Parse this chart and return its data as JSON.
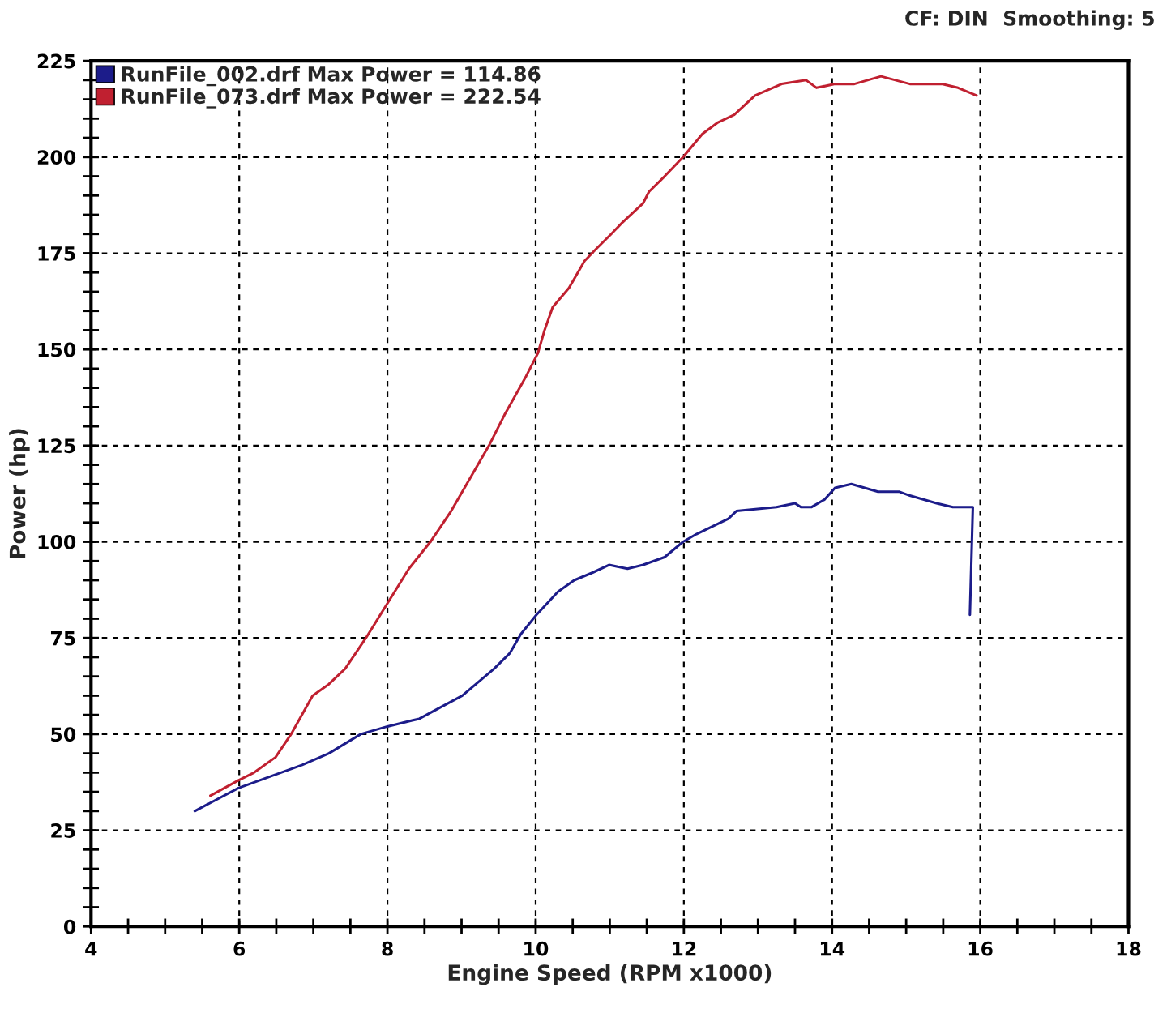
{
  "chart_data": {
    "type": "line",
    "xlabel": "Engine Speed (RPM x1000)",
    "ylabel": "Power (hp)",
    "annotations": [
      "CF: DIN  Smoothing: 5"
    ],
    "xlim": [
      4,
      18
    ],
    "ylim": [
      0,
      225
    ],
    "xticks": [
      4,
      {
        "value": 4.5,
        "label": null
      },
      {
        "value": 5,
        "label": null
      },
      {
        "value": 5.5,
        "label": null
      },
      6,
      {
        "value": 6.5,
        "label": null
      },
      {
        "value": 7,
        "label": null
      },
      {
        "value": 7.5,
        "label": null
      },
      8,
      {
        "value": 8.5,
        "label": null
      },
      {
        "value": 9,
        "label": null
      },
      {
        "value": 9.5,
        "label": null
      },
      10,
      {
        "value": 10.5,
        "label": null
      },
      {
        "value": 11,
        "label": null
      },
      {
        "value": 11.5,
        "label": null
      },
      12,
      {
        "value": 12.5,
        "label": null
      },
      {
        "value": 13,
        "label": null
      },
      {
        "value": 13.5,
        "label": null
      },
      14,
      {
        "value": 14.5,
        "label": null
      },
      {
        "value": 15,
        "label": null
      },
      {
        "value": 15.5,
        "label": null
      },
      16,
      {
        "value": 16.5,
        "label": null
      },
      {
        "value": 17,
        "label": null
      },
      {
        "value": 17.5,
        "label": null
      },
      18
    ],
    "yticks": [
      0,
      {
        "value": 5,
        "label": null
      },
      {
        "value": 10,
        "label": null
      },
      {
        "value": 15,
        "label": null
      },
      {
        "value": 20,
        "label": null
      },
      25,
      {
        "value": 30,
        "label": null
      },
      {
        "value": 35,
        "label": null
      },
      {
        "value": 40,
        "label": null
      },
      {
        "value": 45,
        "label": null
      },
      50,
      {
        "value": 55,
        "label": null
      },
      {
        "value": 60,
        "label": null
      },
      {
        "value": 65,
        "label": null
      },
      {
        "value": 70,
        "label": null
      },
      75,
      {
        "value": 80,
        "label": null
      },
      {
        "value": 85,
        "label": null
      },
      {
        "value": 90,
        "label": null
      },
      {
        "value": 95,
        "label": null
      },
      100,
      {
        "value": 105,
        "label": null
      },
      {
        "value": 110,
        "label": null
      },
      {
        "value": 115,
        "label": null
      },
      {
        "value": 120,
        "label": null
      },
      125,
      {
        "value": 130,
        "label": null
      },
      {
        "value": 135,
        "label": null
      },
      {
        "value": 140,
        "label": null
      },
      {
        "value": 145,
        "label": null
      },
      150,
      {
        "value": 155,
        "label": null
      },
      {
        "value": 160,
        "label": null
      },
      {
        "value": 165,
        "label": null
      },
      {
        "value": 170,
        "label": null
      },
      175,
      {
        "value": 180,
        "label": null
      },
      {
        "value": 185,
        "label": null
      },
      {
        "value": 190,
        "label": null
      },
      {
        "value": 195,
        "label": null
      },
      200,
      {
        "value": 205,
        "label": null
      },
      {
        "value": 210,
        "label": null
      },
      {
        "value": 215,
        "label": null
      },
      {
        "value": 220,
        "label": null
      },
      225
    ],
    "grid": true,
    "legend": "top left",
    "marker": "none",
    "line_style": "solid",
    "series": [
      {
        "name": "RunFile_002.drf Max Power = 114.86",
        "color": "#1c1c8a",
        "x": [
          5.4,
          5.99,
          6.42,
          6.85,
          7.21,
          7.64,
          8.0,
          8.43,
          8.72,
          9.01,
          9.44,
          9.65,
          9.8,
          10.01,
          10.3,
          10.52,
          10.77,
          10.99,
          11.24,
          11.45,
          11.74,
          11.99,
          12.17,
          12.6,
          12.71,
          13.25,
          13.5,
          13.58,
          13.72,
          13.9,
          14.04,
          14.26,
          14.62,
          14.91,
          15.05,
          15.41,
          15.63,
          15.9,
          15.86
        ],
        "values": [
          30,
          36,
          39,
          42,
          45,
          50,
          52,
          54,
          57,
          60,
          67,
          71,
          76,
          81,
          87,
          90,
          92,
          94,
          93,
          94,
          96,
          100,
          102,
          106,
          108,
          109,
          110,
          109,
          109,
          111,
          114,
          115,
          113,
          113,
          112,
          110,
          109,
          109,
          81
        ]
      },
      {
        "name": "RunFile_073.drf Max Power = 222.54",
        "color": "#c02030",
        "x": [
          5.61,
          5.99,
          6.2,
          6.49,
          6.7,
          6.99,
          7.21,
          7.43,
          7.71,
          8.0,
          8.29,
          8.58,
          8.86,
          9.19,
          9.37,
          9.58,
          9.87,
          10.03,
          10.12,
          10.23,
          10.45,
          10.66,
          10.81,
          11.02,
          11.17,
          11.45,
          11.53,
          11.74,
          11.99,
          12.25,
          12.46,
          12.68,
          12.96,
          13.32,
          13.65,
          13.79,
          14.04,
          14.3,
          14.48,
          14.66,
          15.05,
          15.48,
          15.7,
          15.95
        ],
        "values": [
          34,
          38,
          40,
          44,
          50,
          60,
          63,
          67,
          75,
          84,
          93,
          100,
          108,
          119,
          125,
          133,
          143,
          149,
          155,
          161,
          166,
          173,
          176,
          180,
          183,
          188,
          191,
          195,
          200,
          206,
          209,
          211,
          216,
          219,
          220,
          218,
          219,
          219,
          220,
          221,
          219,
          219,
          218,
          216
        ]
      }
    ]
  }
}
